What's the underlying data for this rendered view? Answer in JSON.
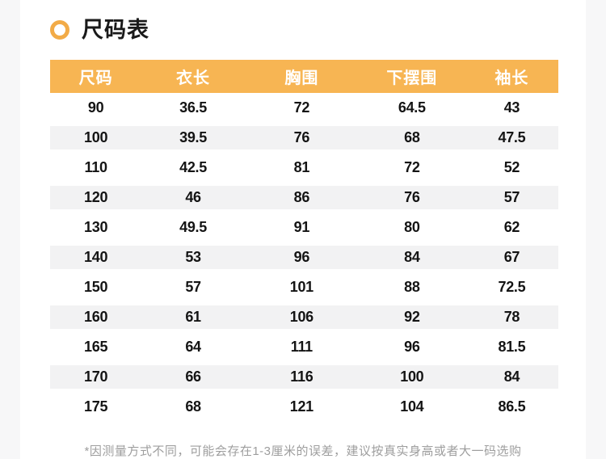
{
  "page": {
    "title": "尺码表",
    "footnote": "*因测量方式不同，可能会存在1-3厘米的误差，建议按真实身高或者大一码选购"
  },
  "colors": {
    "accent_orange": "#f7b553",
    "ring_orange": "#f2ab47",
    "stripe_gray": "#f2f2f3",
    "page_background": "#f7f7f8",
    "content_background": "#ffffff",
    "header_text": "#ffffff",
    "body_text": "#141414",
    "note_text": "#9e9e9e"
  },
  "icons": {
    "bullet": "ring-icon"
  },
  "chart_data": {
    "type": "table",
    "title": "尺码表",
    "columns": [
      "尺码",
      "衣长",
      "胸围",
      "下摆围",
      "袖长"
    ],
    "rows": [
      [
        "90",
        "36.5",
        "72",
        "64.5",
        "43"
      ],
      [
        "100",
        "39.5",
        "76",
        "68",
        "47.5"
      ],
      [
        "110",
        "42.5",
        "81",
        "72",
        "52"
      ],
      [
        "120",
        "46",
        "86",
        "76",
        "57"
      ],
      [
        "130",
        "49.5",
        "91",
        "80",
        "62"
      ],
      [
        "140",
        "53",
        "96",
        "84",
        "67"
      ],
      [
        "150",
        "57",
        "101",
        "88",
        "72.5"
      ],
      [
        "160",
        "61",
        "106",
        "92",
        "78"
      ],
      [
        "165",
        "64",
        "111",
        "96",
        "81.5"
      ],
      [
        "170",
        "66",
        "116",
        "100",
        "84"
      ],
      [
        "175",
        "68",
        "121",
        "104",
        "86.5"
      ]
    ]
  }
}
